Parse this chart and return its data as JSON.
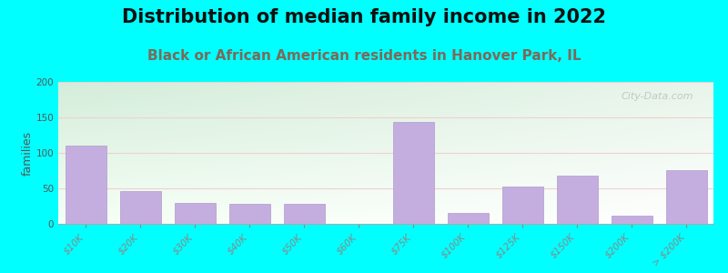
{
  "title": "Distribution of median family income in 2022",
  "subtitle": "Black or African American residents in Hanover Park, IL",
  "ylabel": "families",
  "categories": [
    "$10K",
    "$20K",
    "$30K",
    "$40K",
    "$50K",
    "$60K",
    "$75K",
    "$100K",
    "$125K",
    "$150K",
    "$200K",
    "> $200K"
  ],
  "values": [
    110,
    46,
    30,
    28,
    28,
    0,
    143,
    15,
    53,
    68,
    12,
    76
  ],
  "bar_color": "#c4aee0",
  "bar_edge_color": "#b09acc",
  "ylim": [
    0,
    200
  ],
  "yticks": [
    0,
    50,
    100,
    150,
    200
  ],
  "background_color": "#00ffff",
  "plot_bg_topleft": "#d4edda",
  "plot_bg_right": "#f0f8f0",
  "plot_bg_bottom": "#ffffff",
  "title_fontsize": 15,
  "subtitle_fontsize": 11,
  "subtitle_color": "#7a6a5a",
  "ylabel_fontsize": 9,
  "tick_fontsize": 7.5,
  "grid_color": "#f0d0d0",
  "watermark": "City-Data.com"
}
